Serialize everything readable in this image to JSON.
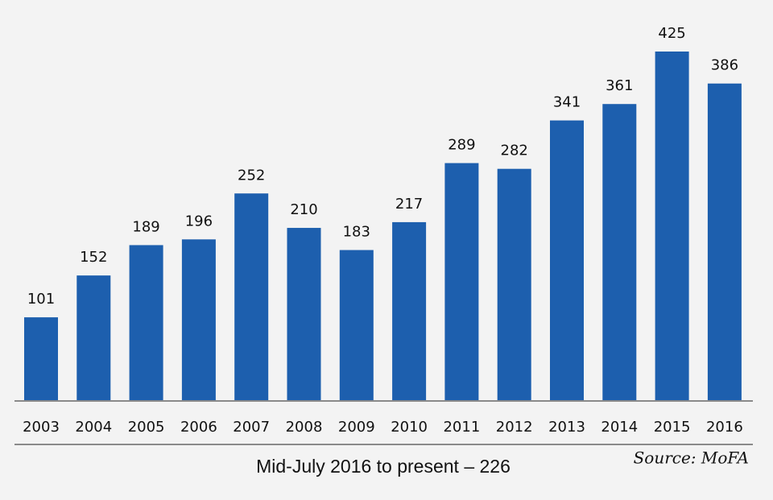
{
  "chart_data": {
    "type": "bar",
    "categories": [
      "2003",
      "2004",
      "2005",
      "2006",
      "2007",
      "2008",
      "2009",
      "2010",
      "2011",
      "2012",
      "2013",
      "2014",
      "2015",
      "2016"
    ],
    "values": [
      101,
      152,
      189,
      196,
      252,
      210,
      183,
      217,
      289,
      282,
      341,
      361,
      425,
      386
    ],
    "color": "#1d5fae",
    "annotation": "Mid-July 2016 to present – 226",
    "source": "Source: MoFA"
  }
}
